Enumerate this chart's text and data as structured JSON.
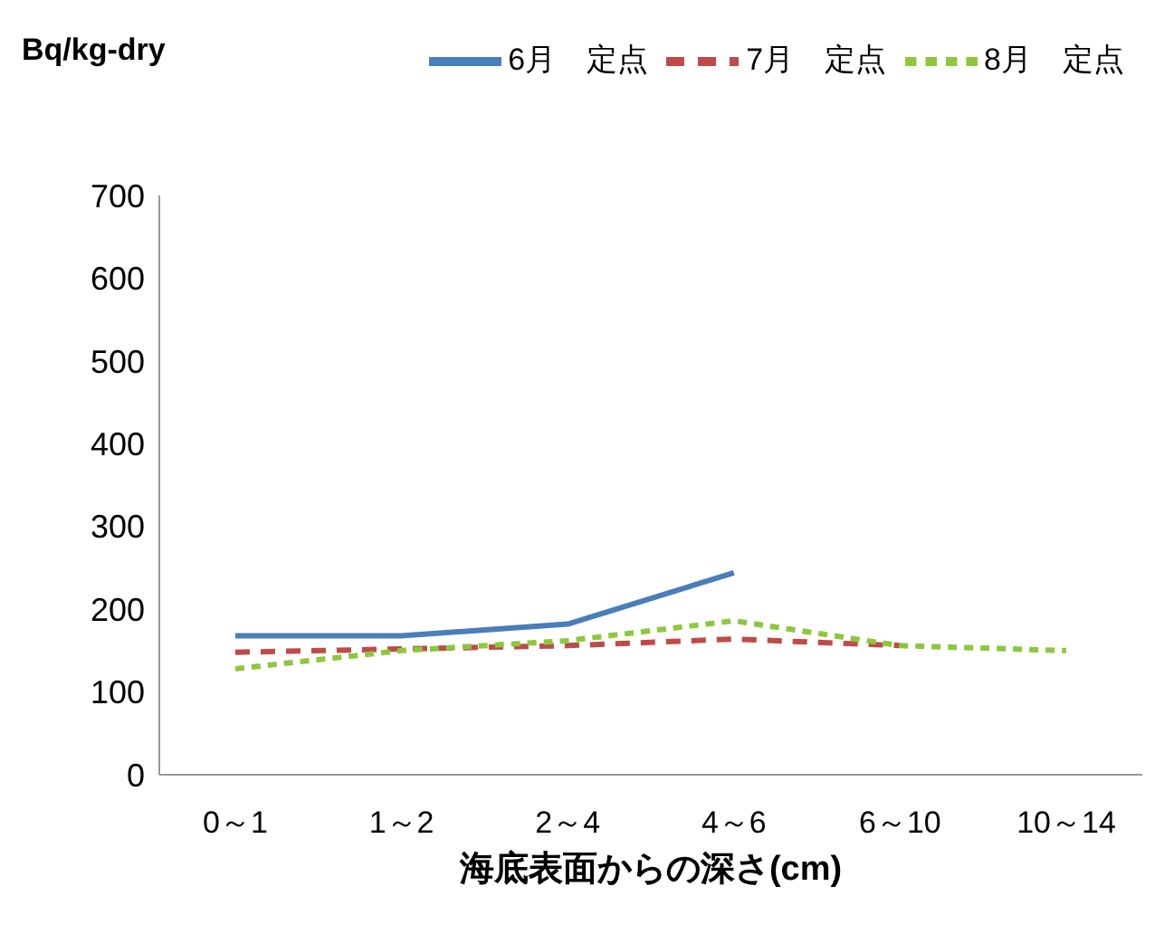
{
  "chart_data": {
    "type": "line",
    "ylabel": "Bq/kg-dry",
    "xlabel": "海底表面からの深さ(cm)",
    "categories": [
      "0～1",
      "1～2",
      "2～4",
      "4～6",
      "6～10",
      "10～14"
    ],
    "series": [
      {
        "name": "6月　定点",
        "color": "#4a7ebb",
        "line_style": "solid",
        "values": [
          168,
          168,
          182,
          244,
          null,
          null
        ]
      },
      {
        "name": "7月　定点",
        "color": "#be4b48",
        "line_style": "dashed",
        "values": [
          148,
          152,
          156,
          164,
          156,
          null
        ]
      },
      {
        "name": "8月　定点",
        "color": "#8cc83c",
        "line_style": "dotted",
        "values": [
          128,
          150,
          162,
          186,
          156,
          150
        ]
      }
    ],
    "ylim": [
      0,
      700
    ],
    "yticks": [
      0,
      100,
      200,
      300,
      400,
      500,
      600,
      700
    ],
    "grid": false,
    "legend": "top right",
    "marker": "none"
  }
}
